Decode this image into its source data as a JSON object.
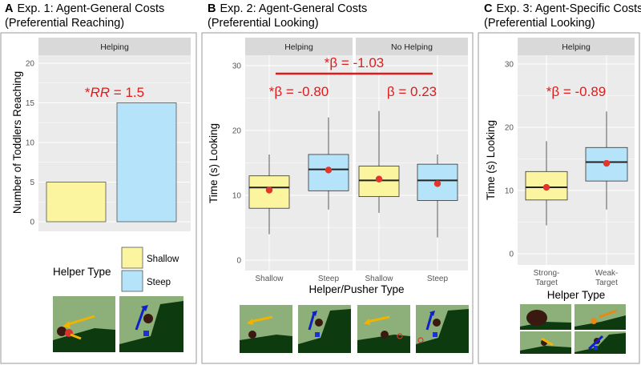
{
  "chart_data": [
    {
      "panel": "A",
      "type": "bar",
      "title_letter": "A",
      "title_line1": "Exp. 1: Agent-General Costs",
      "title_line2": "(Preferential Reaching)",
      "facet": "Helping",
      "categories": [
        "Shallow",
        "Steep"
      ],
      "values": [
        5,
        15
      ],
      "ylabel": "Number of Toddlers Reaching",
      "ylim": [
        0,
        20
      ],
      "yticks": [
        0,
        5,
        10,
        15,
        20
      ],
      "annotation_prefix": "*",
      "annotation_var": "RR",
      "annotation_rest": " = 1.5",
      "legend_title": "Helper Type",
      "legend": [
        {
          "label": "Shallow",
          "color": "#fbf5a0"
        },
        {
          "label": "Steep",
          "color": "#b5e3fa"
        }
      ]
    },
    {
      "panel": "B",
      "type": "box",
      "title_letter": "B",
      "title_line1": "Exp. 2: Agent-General Costs",
      "title_line2": "(Preferential Looking)",
      "ylabel": "Time (s) Looking",
      "xlabel": "Helper/Pusher Type",
      "ylim": [
        0,
        30
      ],
      "yticks": [
        0,
        10,
        20,
        30
      ],
      "facets": [
        {
          "name": "Helping",
          "annotation": "*β = -0.80",
          "groups": [
            {
              "label": "Shallow",
              "q1": 8.0,
              "median": 11.2,
              "q3": 13.0,
              "whisker_low": 4.0,
              "whisker_high": 16.3,
              "mean": 10.8,
              "color": "#fbf5a0"
            },
            {
              "label": "Steep",
              "q1": 10.7,
              "median": 14.0,
              "q3": 16.3,
              "whisker_low": 7.8,
              "whisker_high": 22.0,
              "mean": 13.9,
              "color": "#b5e3fa"
            }
          ]
        },
        {
          "name": "No Helping",
          "annotation": "β = 0.23",
          "groups": [
            {
              "label": "Shallow",
              "q1": 9.8,
              "median": 12.3,
              "q3": 14.5,
              "whisker_low": 7.3,
              "whisker_high": 23.0,
              "mean": 12.5,
              "color": "#fbf5a0"
            },
            {
              "label": "Steep",
              "q1": 9.2,
              "median": 12.3,
              "q3": 14.8,
              "whisker_low": 3.5,
              "whisker_high": 16.3,
              "mean": 11.8,
              "color": "#b5e3fa"
            }
          ]
        }
      ],
      "interaction_annotation": "*β = -1.03"
    },
    {
      "panel": "C",
      "type": "box",
      "title_letter": "C",
      "title_line1": "Exp. 3: Agent-Specific Costs",
      "title_line2": "(Preferential Looking)",
      "ylabel": "Time (s) Looking",
      "xlabel": "Helper Type",
      "ylim": [
        0,
        30
      ],
      "yticks": [
        0,
        10,
        20,
        30
      ],
      "facet": "Helping",
      "annotation": "*β = -0.89",
      "groups": [
        {
          "label_line1": "Strong-",
          "label_line2": "Target",
          "q1": 8.5,
          "median": 10.5,
          "q3": 13.0,
          "whisker_low": 4.5,
          "whisker_high": 17.8,
          "mean": 10.5,
          "color": "#fbf5a0"
        },
        {
          "label_line1": "Weak-",
          "label_line2": "Target",
          "q1": 11.5,
          "median": 14.5,
          "q3": 16.8,
          "whisker_low": 7.0,
          "whisker_high": 22.5,
          "mean": 14.3,
          "color": "#b5e3fa"
        }
      ]
    }
  ],
  "colors": {
    "panel_bg": "#ebebeb",
    "strip_bg": "#d9d9d9",
    "grid": "#ffffff",
    "shallow": "#fbf5a0",
    "steep": "#b5e3fa",
    "annotation": "#e21a1a",
    "mean_point": "#e0362b",
    "scene_sky": "#8db07a",
    "scene_hill": "#0d3a0f",
    "arrow_yellow": "#f0b400",
    "arrow_blue": "#1020c8",
    "arrow_orange": "#e58a14"
  }
}
